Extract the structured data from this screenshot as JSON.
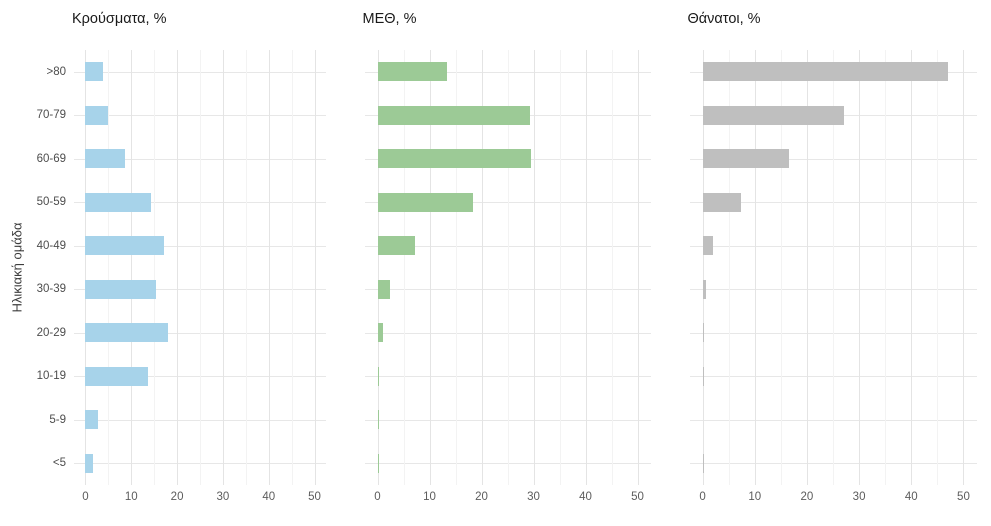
{
  "figure": {
    "background_color": "#ffffff",
    "y_axis_title": "Ηλικιακή ομάδα",
    "categories_top_to_bottom": [
      ">80",
      "70-79",
      "60-69",
      "50-59",
      "40-49",
      "30-39",
      "20-29",
      "10-19",
      "5-9",
      "<5"
    ],
    "x_tick_labels": [
      "0",
      "10",
      "20",
      "30",
      "40",
      "50"
    ],
    "colors": {
      "grid_major": "#e4e4e4",
      "grid_minor": "#f3f3f3",
      "grid_row": "#e7e7e7",
      "title_text": "#1a1a1a",
      "axis_tick_text": "#5c5c5c",
      "category_text": "#4d4d4d"
    }
  },
  "chart_data": [
    {
      "type": "bar",
      "orientation": "horizontal",
      "title": "Κρούσματα, %",
      "ylabel": "Ηλικιακή ομάδα",
      "xlabel": "",
      "bar_color": "#a7d3ea",
      "categories": [
        ">80",
        "70-79",
        "60-69",
        "50-59",
        "40-49",
        "30-39",
        "20-29",
        "10-19",
        "5-9",
        "<5"
      ],
      "values": [
        3.8,
        4.9,
        8.6,
        14.2,
        17.1,
        15.3,
        18.0,
        13.6,
        2.7,
        1.6
      ],
      "xlim": [
        0,
        50
      ],
      "xticks": [
        0,
        10,
        20,
        30,
        40,
        50
      ],
      "minor_ticks_every": 5,
      "grid": true,
      "legend": false
    },
    {
      "type": "bar",
      "orientation": "horizontal",
      "title": "ΜΕΘ, %",
      "ylabel": "",
      "xlabel": "",
      "bar_color": "#9cca96",
      "categories": [
        ">80",
        "70-79",
        "60-69",
        "50-59",
        "40-49",
        "30-39",
        "20-29",
        "10-19",
        "5-9",
        "<5"
      ],
      "values": [
        13.4,
        29.3,
        29.5,
        18.3,
        7.3,
        2.4,
        1.0,
        0.2,
        0.1,
        0.2
      ],
      "xlim": [
        0,
        50
      ],
      "xticks": [
        0,
        10,
        20,
        30,
        40,
        50
      ],
      "minor_ticks_every": 5,
      "grid": true,
      "legend": false
    },
    {
      "type": "bar",
      "orientation": "horizontal",
      "title": "Θάνατοι, %",
      "ylabel": "",
      "xlabel": "",
      "bar_color": "#bfbfbf",
      "categories": [
        ">80",
        "70-79",
        "60-69",
        "50-59",
        "40-49",
        "30-39",
        "20-29",
        "10-19",
        "5-9",
        "<5"
      ],
      "values": [
        47.0,
        27.1,
        16.6,
        7.3,
        2.0,
        0.6,
        0.15,
        0.15,
        0.0,
        0.1
      ],
      "xlim": [
        0,
        50
      ],
      "xticks": [
        0,
        10,
        20,
        30,
        40,
        50
      ],
      "minor_ticks_every": 5,
      "grid": true,
      "legend": false
    }
  ]
}
